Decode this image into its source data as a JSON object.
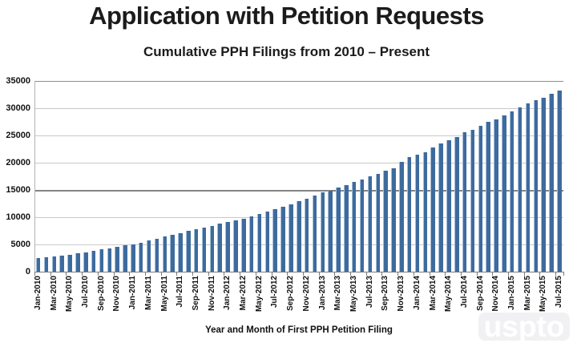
{
  "page": {
    "watermark": "uspto"
  },
  "chart_data": {
    "type": "bar",
    "title": "Application with Petition Requests",
    "subtitle": "Cumulative PPH Filings from 2010 – Present",
    "xlabel": "Year and Month of First PPH Petition Filing",
    "ylabel": "",
    "ylim": [
      0,
      35000
    ],
    "yticks": [
      0,
      5000,
      10000,
      15000,
      20000,
      25000,
      30000,
      35000
    ],
    "grid": "horizontal",
    "legend": "none",
    "x_label_every": 2,
    "bar_color": "#3e6b9d",
    "bar_highlight_color": "#a6bfda",
    "gridline_color": "#c9c9c9",
    "gridline_dark_values": [
      35000
    ],
    "gridline_darker_values": [
      15000
    ],
    "axis_color": "#7a7a7a",
    "categories": [
      "Jan-2010",
      "Feb-2010",
      "Mar-2010",
      "Apr-2010",
      "May-2010",
      "Jun-2010",
      "Jul-2010",
      "Aug-2010",
      "Sep-2010",
      "Oct-2010",
      "Nov-2010",
      "Dec-2010",
      "Jan-2011",
      "Feb-2011",
      "Mar-2011",
      "Apr-2011",
      "May-2011",
      "Jun-2011",
      "Jul-2011",
      "Aug-2011",
      "Sep-2011",
      "Oct-2011",
      "Nov-2011",
      "Dec-2011",
      "Jan-2012",
      "Feb-2012",
      "Mar-2012",
      "Apr-2012",
      "May-2012",
      "Jun-2012",
      "Jul-2012",
      "Aug-2012",
      "Sep-2012",
      "Oct-2012",
      "Nov-2012",
      "Dec-2012",
      "Jan-2013",
      "Feb-2013",
      "Mar-2013",
      "Apr-2013",
      "May-2013",
      "Jun-2013",
      "Jul-2013",
      "Aug-2013",
      "Sep-2013",
      "Oct-2013",
      "Nov-2013",
      "Dec-2013",
      "Jan-2014",
      "Feb-2014",
      "Mar-2014",
      "Apr-2014",
      "May-2014",
      "Jun-2014",
      "Jul-2014",
      "Aug-2014",
      "Sep-2014",
      "Oct-2014",
      "Nov-2014",
      "Dec-2014",
      "Jan-2015",
      "Feb-2015",
      "Mar-2015",
      "Apr-2015",
      "May-2015",
      "Jun-2015",
      "Jul-2015"
    ],
    "values": [
      2500,
      2620,
      2760,
      2980,
      3140,
      3380,
      3600,
      3840,
      4080,
      4300,
      4520,
      4800,
      5050,
      5350,
      5720,
      6060,
      6420,
      6760,
      7120,
      7460,
      7820,
      8140,
      8460,
      8780,
      9100,
      9400,
      9750,
      10150,
      10550,
      11000,
      11500,
      11950,
      12400,
      12900,
      13450,
      13950,
      14550,
      14900,
      15450,
      15950,
      16450,
      16950,
      17450,
      17950,
      18550,
      19050,
      20100,
      21000,
      21550,
      21950,
      22750,
      23500,
      24100,
      24750,
      25550,
      26000,
      26750,
      27450,
      27950,
      28700,
      29450,
      30100,
      30950,
      31450,
      31950,
      32650,
      33250
    ]
  }
}
